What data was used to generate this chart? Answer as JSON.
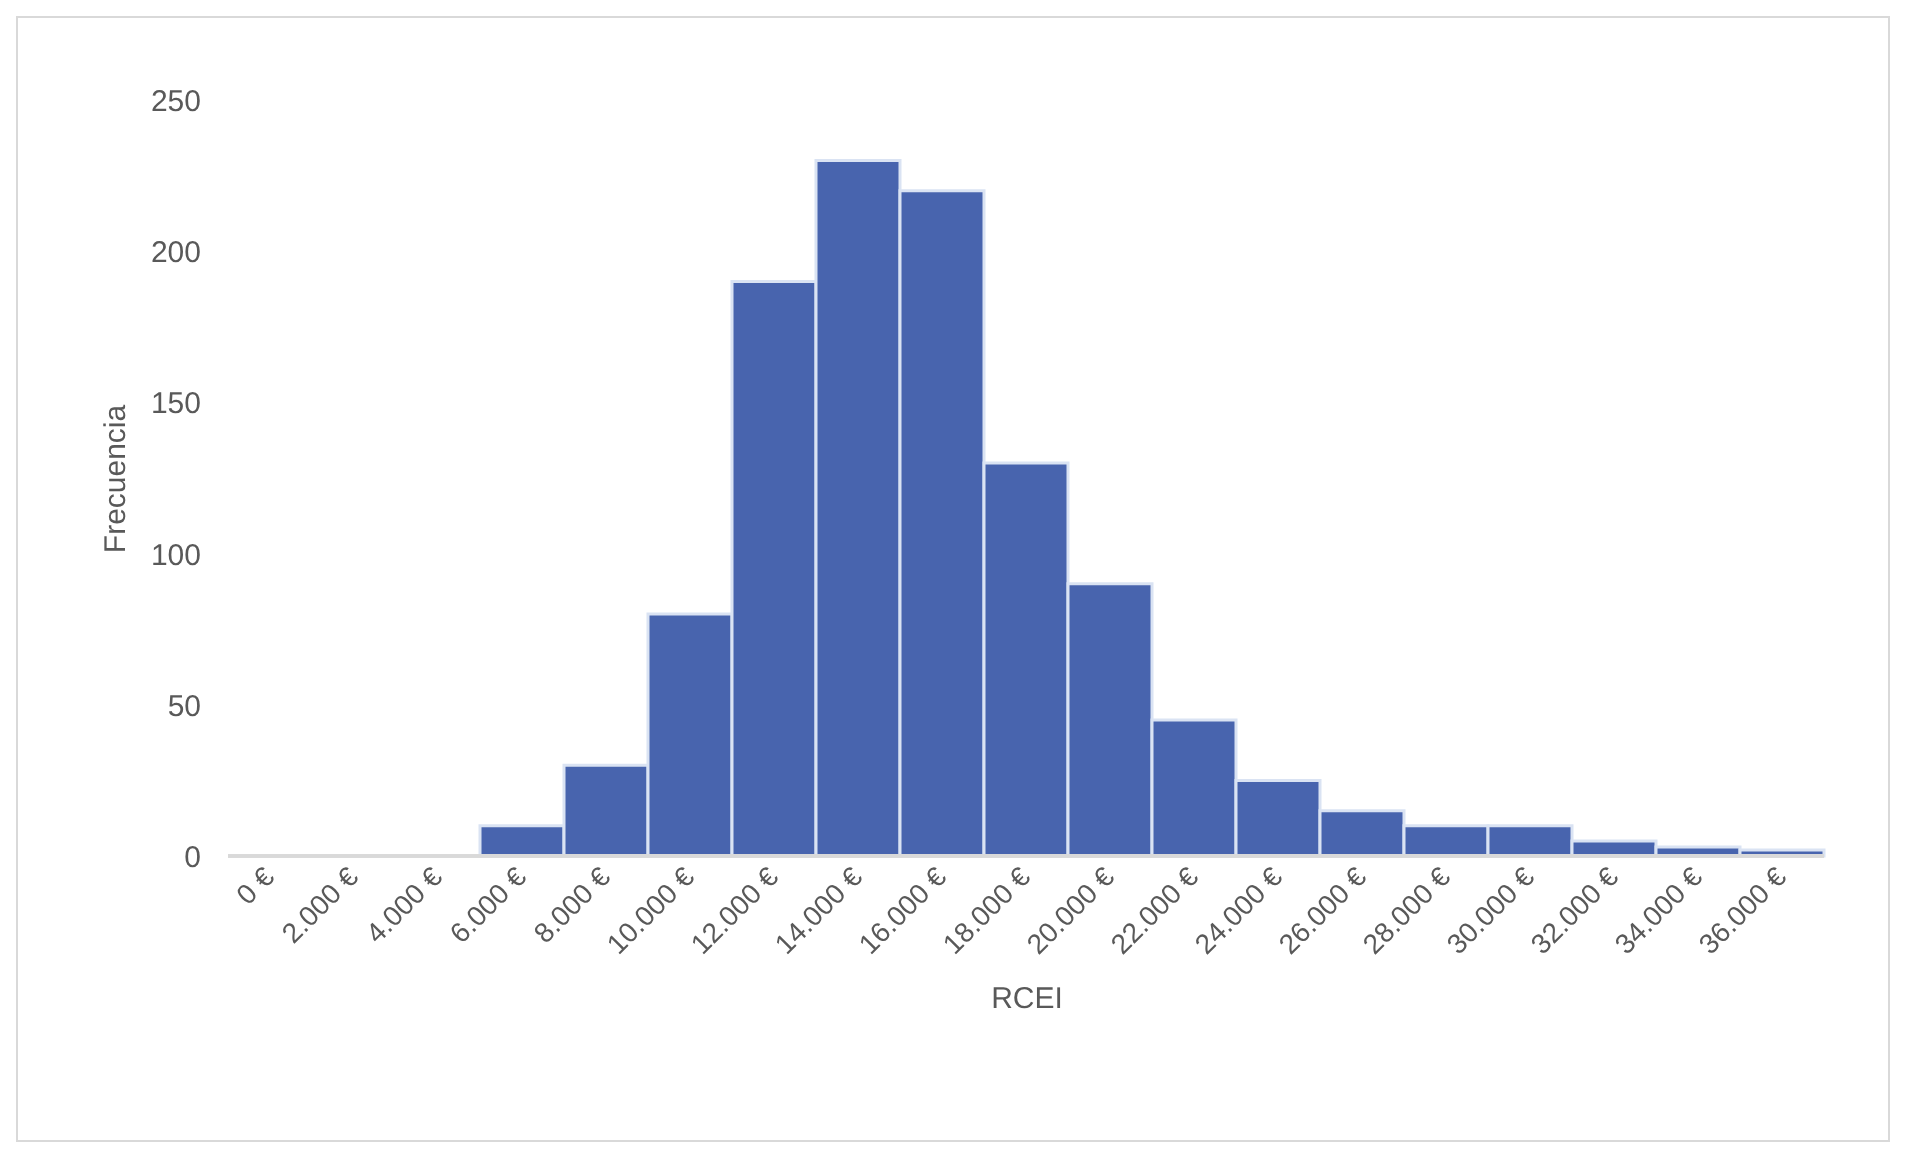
{
  "chart_data": {
    "type": "bar",
    "xlabel": "RCEI",
    "ylabel": "Frecuencia",
    "categories": [
      "0 €",
      "2.000 €",
      "4.000 €",
      "6.000 €",
      "8.000 €",
      "10.000 €",
      "12.000 €",
      "14.000 €",
      "16.000 €",
      "18.000 €",
      "20.000 €",
      "22.000 €",
      "24.000 €",
      "26.000 €",
      "28.000 €",
      "30.000 €",
      "32.000 €",
      "34.000 €",
      "36.000 €"
    ],
    "values": [
      0,
      0,
      0,
      10,
      30,
      80,
      190,
      230,
      220,
      130,
      90,
      45,
      25,
      15,
      10,
      10,
      5,
      3,
      2
    ],
    "color": "#4864ae",
    "ylim": [
      0,
      250
    ],
    "yticks": [
      0,
      50,
      100,
      150,
      200,
      250
    ],
    "grid": false
  }
}
